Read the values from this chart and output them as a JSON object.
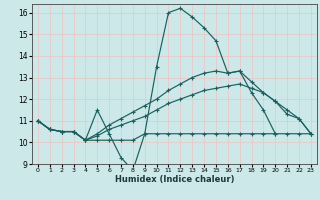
{
  "xlabel": "Humidex (Indice chaleur)",
  "xlim": [
    -0.5,
    23.5
  ],
  "ylim": [
    9,
    16.4
  ],
  "yticks": [
    9,
    10,
    11,
    12,
    13,
    14,
    15,
    16
  ],
  "xticks": [
    0,
    1,
    2,
    3,
    4,
    5,
    6,
    7,
    8,
    9,
    10,
    11,
    12,
    13,
    14,
    15,
    16,
    17,
    18,
    19,
    20,
    21,
    22,
    23
  ],
  "bg_color": "#cce8e8",
  "grid_color": "#e8c8c8",
  "line_color": "#1a6060",
  "lines": [
    {
      "x": [
        0,
        1,
        2,
        3,
        4,
        5,
        6,
        7,
        8,
        9,
        10,
        11,
        12,
        13,
        14,
        15,
        16,
        17,
        18,
        19,
        20
      ],
      "y": [
        11.0,
        10.6,
        10.5,
        10.5,
        10.1,
        11.5,
        10.4,
        9.3,
        8.7,
        10.4,
        13.5,
        16.0,
        16.2,
        15.8,
        15.3,
        14.7,
        13.2,
        13.3,
        12.3,
        11.5,
        10.4
      ]
    },
    {
      "x": [
        0,
        1,
        2,
        3,
        4,
        5,
        6,
        7,
        8,
        9,
        10,
        11,
        12,
        13,
        14,
        15,
        16,
        17,
        18,
        19,
        20,
        21,
        22,
        23
      ],
      "y": [
        11.0,
        10.6,
        10.5,
        10.5,
        10.1,
        10.1,
        10.1,
        10.1,
        10.1,
        10.4,
        10.4,
        10.4,
        10.4,
        10.4,
        10.4,
        10.4,
        10.4,
        10.4,
        10.4,
        10.4,
        10.4,
        10.4,
        10.4,
        10.4
      ]
    },
    {
      "x": [
        0,
        1,
        2,
        3,
        4,
        5,
        6,
        7,
        8,
        9,
        10,
        11,
        12,
        13,
        14,
        15,
        16,
        17,
        18,
        19,
        20,
        21,
        22,
        23
      ],
      "y": [
        11.0,
        10.6,
        10.5,
        10.5,
        10.1,
        10.3,
        10.6,
        10.8,
        11.0,
        11.2,
        11.5,
        11.8,
        12.0,
        12.2,
        12.4,
        12.5,
        12.6,
        12.7,
        12.5,
        12.3,
        11.9,
        11.3,
        11.1,
        10.4
      ]
    },
    {
      "x": [
        0,
        1,
        2,
        3,
        4,
        5,
        6,
        7,
        8,
        9,
        10,
        11,
        12,
        13,
        14,
        15,
        16,
        17,
        18,
        19,
        20,
        21,
        22,
        23
      ],
      "y": [
        11.0,
        10.6,
        10.5,
        10.5,
        10.1,
        10.4,
        10.8,
        11.1,
        11.4,
        11.7,
        12.0,
        12.4,
        12.7,
        13.0,
        13.2,
        13.3,
        13.2,
        13.3,
        12.8,
        12.3,
        11.9,
        11.5,
        11.1,
        10.4
      ]
    }
  ]
}
